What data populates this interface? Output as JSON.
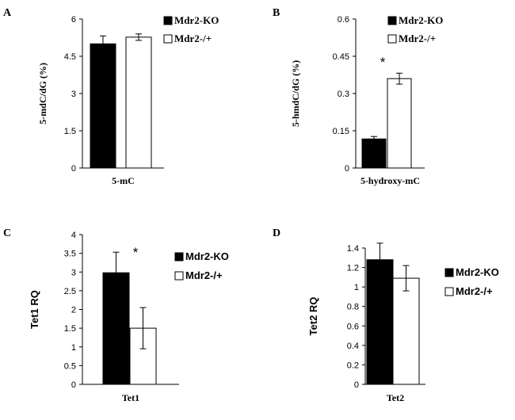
{
  "chart_data": [
    {
      "panel_label": "A",
      "type": "bar",
      "categories": [
        "5-mC"
      ],
      "xlabel": "5-mC",
      "ylabel": "5-mdC/dG (%)",
      "ylim": [
        0,
        6
      ],
      "yticks": [
        "0",
        "1.5",
        "3",
        "4.5",
        "6"
      ],
      "series": [
        {
          "name": "Mdr2-KO",
          "values": [
            5.0
          ],
          "errors": [
            0.32
          ],
          "fill": "#000000"
        },
        {
          "name": "Mdr2-/+",
          "values": [
            5.27
          ],
          "errors": [
            0.13
          ],
          "fill": "#ffffff"
        }
      ],
      "annotations": [],
      "legend_position": "top-right"
    },
    {
      "panel_label": "B",
      "type": "bar",
      "categories": [
        "5-hydroxy-mC"
      ],
      "xlabel": "5-hydroxy-mC",
      "ylabel": "5-hmdC/dG (%)",
      "ylim": [
        0,
        0.6
      ],
      "yticks": [
        "0",
        "0.15",
        "0.3",
        "0.45",
        "0.6"
      ],
      "series": [
        {
          "name": "Mdr2-KO",
          "values": [
            0.117
          ],
          "errors": [
            0.01
          ],
          "fill": "#000000"
        },
        {
          "name": "Mdr2-/+",
          "values": [
            0.36
          ],
          "errors": [
            0.022
          ],
          "fill": "#ffffff"
        }
      ],
      "annotations": [
        "*"
      ],
      "legend_position": "top-right"
    },
    {
      "panel_label": "C",
      "type": "bar",
      "categories": [
        "Tet1"
      ],
      "xlabel": "Tet1",
      "ylabel": "Tet1 RQ",
      "ylim": [
        0,
        4
      ],
      "yticks": [
        "0",
        "0.5",
        "1",
        "1.5",
        "2",
        "2.5",
        "3",
        "3.5",
        "4"
      ],
      "series": [
        {
          "name": "Mdr2-KO",
          "values": [
            2.98
          ],
          "errors": [
            0.55
          ],
          "fill": "#000000"
        },
        {
          "name": "Mdr2-/+",
          "values": [
            1.5
          ],
          "errors": [
            0.55
          ],
          "fill": "#ffffff"
        }
      ],
      "annotations": [
        "*"
      ],
      "legend_position": "right"
    },
    {
      "panel_label": "D",
      "type": "bar",
      "categories": [
        "Tet2"
      ],
      "xlabel": "Tet2",
      "ylabel": "Tet2 RQ",
      "ylim": [
        0,
        1.4
      ],
      "yticks": [
        "0",
        "0.2",
        "0.4",
        "0.6",
        "0.8",
        "1",
        "1.2",
        "1.4"
      ],
      "series": [
        {
          "name": "Mdr2-KO",
          "values": [
            1.28
          ],
          "errors": [
            0.17
          ],
          "fill": "#000000"
        },
        {
          "name": "Mdr2-/+",
          "values": [
            1.09
          ],
          "errors": [
            0.13
          ],
          "fill": "#ffffff"
        }
      ],
      "annotations": [],
      "legend_position": "right"
    }
  ]
}
